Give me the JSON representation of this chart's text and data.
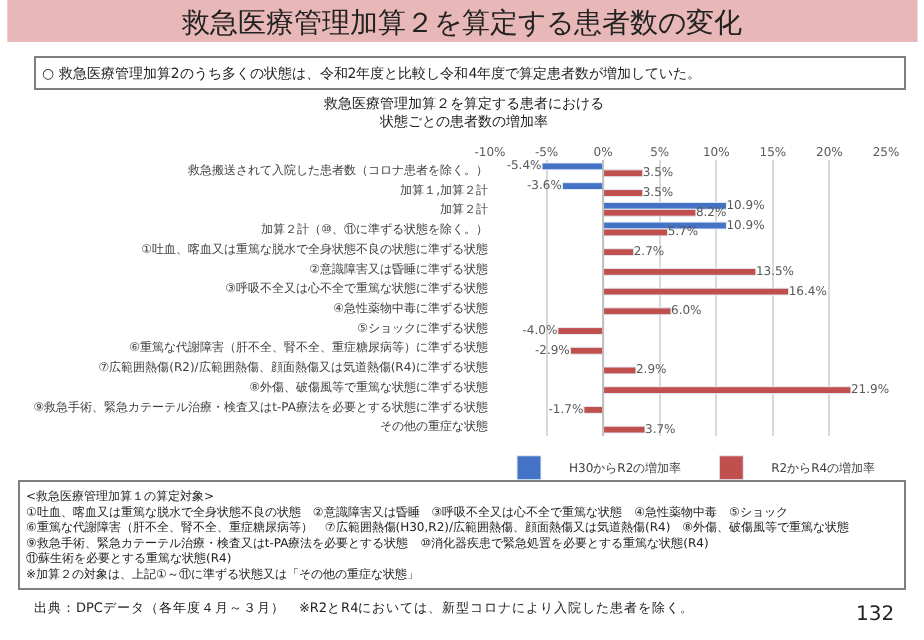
{
  "chart_data": {
    "type": "bar",
    "orientation": "horizontal",
    "title": "救急医療管理加算２を算定する患者数の変化",
    "subtitle": "○ 救急医療管理加算2のうち多くの状態は、令和2年度と比較し令和4年度で算定患者数が増加していた。",
    "annotations": [
      "救急医療管理加算２を算定する患者における状態ごとの患者数の増加率",
      "<救急医療管理加算１の算定対象>\n①吐血、喀血又は重篤な脱水で全身状態不良の状態　②意識障害又は昏睡　③呼吸不全又は心不全で重篤な状態　④急性薬物中毒　⑤ショック\n⑥重篤な代謝障害（肝不全、腎不全、重症糖尿病等）　⑦広範囲熱傷(H30,R2)/広範囲熱傷、顔面熱傷又は気道熱傷(R4)　⑧外傷、破傷風等で重篤な状態\n⑨救急手術、緊急カテーテル治療・検査又はt-PA療法を必要とする状態　⑩消化器疾患で緊急処置を必要とする重篤な状態(R4)　⑪蘇生術を必要とする重篤な状態(R4)\n※加算２の対象は、上記①～⑪に準ずる状態又は「その他の重症な状態」",
      "出典：DPCデータ（各年度４月～３月）　※R2とR4においては、新型コロナにより入院した患者を除く。",
      "132"
    ],
    "categories": [
      "救急搬送されて入院した患者数（コロナ患者を除く。）",
      "加算１,加算２計",
      "加算２計",
      "加算２計（⑩、⑪に準ずる状態を除く。）",
      "①吐血、喀血又は重篤な脱水で全身状態不良の状態に準ずる状態",
      "②意識障害又は昏睡に準ずる状態",
      "③呼吸不全又は心不全で重篤な状態に準ずる状態",
      "④急性薬物中毒に準ずる状態",
      "⑤ショックに準ずる状態",
      "⑥重篤な代謝障害（肝不全、腎不全、重症糖尿病等）に準ずる状態",
      "⑦広範囲熱傷(R2)/広範囲熱傷、顔面熱傷又は気道熱傷(R4)に準ずる状態",
      "⑧外傷、破傷風等で重篤な状態に準ずる状態",
      "⑨救急手術、緊急カテーテル治療・検査又はt-PA療法を必要とする状態に準ずる状態",
      "その他の重症な状態"
    ],
    "series": [
      {
        "name": "H30からR2の増加率",
        "color": "#4472c4",
        "values": [
          -5.4,
          -3.6,
          10.9,
          10.9,
          null,
          null,
          null,
          null,
          null,
          null,
          null,
          null,
          null,
          null
        ],
        "value_labels": [
          "-5.4%",
          "-3.6%",
          "10.9%",
          "10.9%",
          null,
          null,
          null,
          null,
          null,
          null,
          null,
          null,
          null,
          null
        ]
      },
      {
        "name": "R2からR4の増加率",
        "color": "#c0504d",
        "values": [
          3.5,
          3.5,
          8.2,
          5.7,
          2.7,
          13.5,
          16.4,
          6.0,
          -4.0,
          -2.9,
          2.9,
          21.9,
          -1.7,
          3.7
        ],
        "value_labels": [
          "3.5%",
          "3.5%",
          "8.2%",
          "5.7%",
          "2.7%",
          "13.5%",
          "16.4%",
          "6.0%",
          "-4.0%",
          "-2.9%",
          "2.9%",
          "21.9%",
          "-1.7%",
          "3.7%"
        ]
      }
    ],
    "xlim": [
      -10,
      25
    ],
    "xticks": [
      {
        "value": -10,
        "label": "-10%"
      },
      {
        "value": -5,
        "label": "-5%"
      },
      {
        "value": 0,
        "label": "0%"
      },
      {
        "value": 5,
        "label": "5%"
      },
      {
        "value": 10,
        "label": "10%"
      },
      {
        "value": 15,
        "label": "15%"
      },
      {
        "value": 20,
        "label": "20%"
      },
      {
        "value": 25,
        "label": "25%"
      }
    ],
    "grid": "x",
    "legend": "bottom"
  }
}
